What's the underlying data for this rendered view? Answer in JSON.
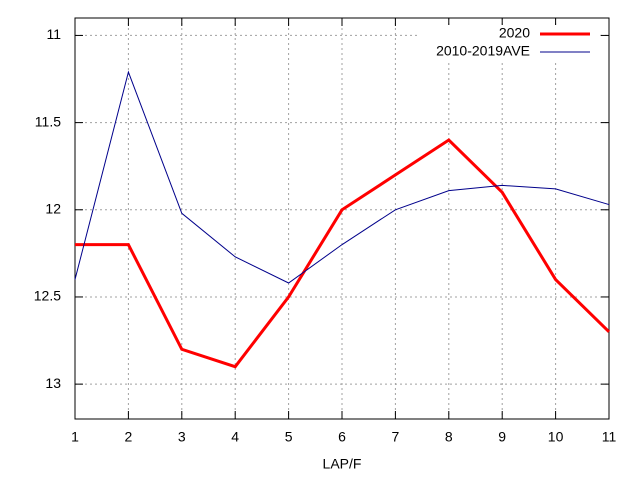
{
  "chart_data": {
    "type": "line",
    "xlabel": "LAP/F",
    "x": [
      1,
      2,
      3,
      4,
      5,
      6,
      7,
      8,
      9,
      10,
      11
    ],
    "series": [
      {
        "name": "2020",
        "color": "#ff0000",
        "values": [
          12.2,
          12.2,
          12.8,
          12.9,
          12.5,
          12.0,
          11.8,
          11.6,
          11.9,
          12.4,
          12.7
        ]
      },
      {
        "name": "2010-2019AVE",
        "color": "#00008b",
        "values": [
          12.4,
          11.21,
          12.02,
          12.27,
          12.42,
          12.2,
          12.0,
          11.89,
          11.86,
          11.88,
          11.97
        ]
      }
    ],
    "xlim": [
      1,
      11
    ],
    "xticks": [
      1,
      2,
      3,
      4,
      5,
      6,
      7,
      8,
      9,
      10,
      11
    ],
    "ylim": [
      13.2,
      10.9
    ],
    "yticks": [
      11,
      11.5,
      12,
      12.5,
      13
    ],
    "grid": true,
    "legend": "top-right"
  }
}
